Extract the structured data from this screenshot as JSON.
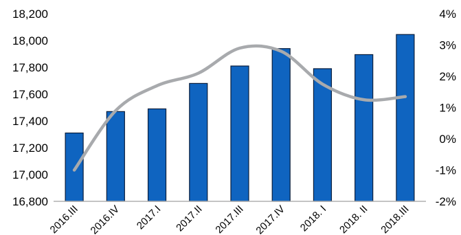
{
  "chart_data": {
    "type": "bar+line",
    "categories": [
      "2016.III",
      "2016.IV",
      "2017.I",
      "2017.II",
      "2017.III",
      "2017.IV",
      "2018. I",
      "2018. II",
      "2018.III"
    ],
    "series": [
      {
        "type": "bar",
        "axis": "left",
        "values": [
          17310,
          17470,
          17490,
          17680,
          17810,
          17940,
          17790,
          17895,
          18045
        ]
      },
      {
        "type": "line",
        "axis": "right",
        "values": [
          -1.0,
          0.9,
          1.7,
          2.1,
          2.9,
          2.8,
          1.75,
          1.25,
          1.35
        ]
      }
    ],
    "y_left": {
      "ylim": [
        16800,
        18200
      ],
      "ticks": [
        "16,800",
        "17,000",
        "17,200",
        "17,400",
        "17,600",
        "17,800",
        "18,000",
        "18,200"
      ]
    },
    "y_right": {
      "ylim": [
        -2,
        4
      ],
      "ticks": [
        "-2%",
        "-1%",
        "0%",
        "1%",
        "2%",
        "3%",
        "4%"
      ]
    },
    "grid": false,
    "colors": {
      "bar_fill": "#0f64c0",
      "bar_stroke": "#0a1e3c",
      "line": "#a8aaad",
      "axis": "#b0b0b0"
    }
  }
}
